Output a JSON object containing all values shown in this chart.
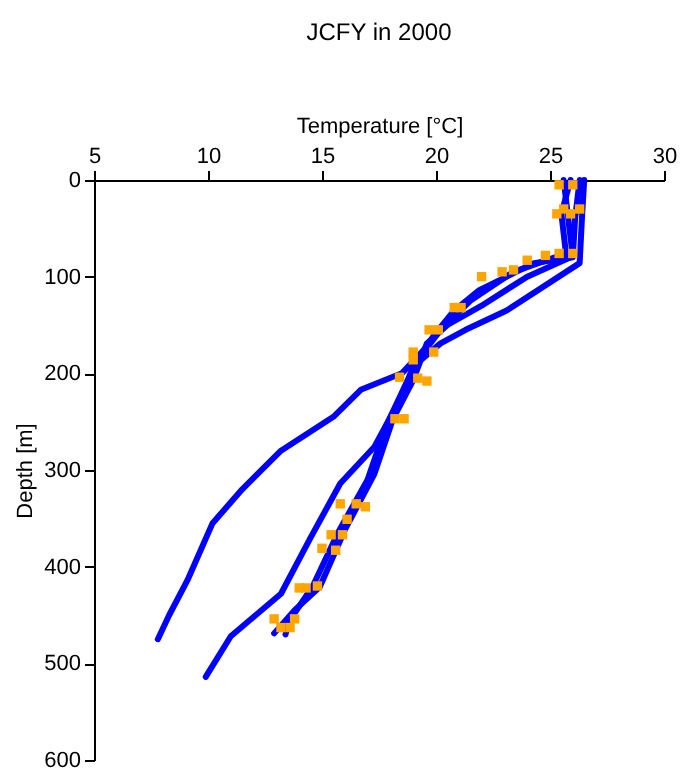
{
  "chart_data": {
    "type": "line",
    "title": "JCFY in 2000",
    "xlabel": "Temperature [°C]",
    "ylabel": "Depth [m]",
    "xlim": [
      5,
      30
    ],
    "ylim": [
      600,
      0
    ],
    "xticks": [
      5,
      10,
      15,
      20,
      25,
      30
    ],
    "yticks": [
      0,
      100,
      200,
      300,
      400,
      500,
      600
    ],
    "series": [
      {
        "color": "#0000ff",
        "marker": "none",
        "x": [
          26.3,
          26.1,
          26.0,
          24.3,
          21.9,
          20.8,
          19.9,
          19.5,
          18.5,
          16.7,
          15.5,
          13.2,
          11.5,
          10.2,
          9.1,
          8.3,
          7.8
        ],
        "values": [
          0,
          40,
          80,
          86,
          114,
          135,
          161,
          175,
          200,
          217,
          245,
          280,
          320,
          355,
          414,
          450,
          475
        ]
      },
      {
        "color": "#0000ff",
        "marker": "none",
        "x": [
          26.5,
          26.4,
          26.3,
          23.1,
          21.3,
          20.2,
          19.0,
          18.4,
          17.3,
          15.8,
          14.5,
          13.2,
          11.0,
          9.9
        ],
        "values": [
          0,
          40,
          86,
          135,
          155,
          169,
          193,
          228,
          276,
          314,
          370,
          428,
          472,
          514
        ]
      },
      {
        "color": "#0000ff",
        "marker": "none",
        "x": [
          25.6,
          25.8,
          26.0,
          24.0,
          22.0,
          20.5,
          19.6,
          19.0,
          18.1,
          17.3,
          16.0,
          14.9,
          13.8,
          12.9
        ],
        "values": [
          0,
          40,
          79,
          100,
          130,
          150,
          169,
          207,
          248,
          304,
          362,
          421,
          445,
          469
        ]
      },
      {
        "color": "#0000ff",
        "marker": "none",
        "x": [
          25.9,
          25.5,
          25.7,
          23.4,
          21.5,
          20.2,
          19.4,
          18.7,
          17.8,
          17.0,
          15.7,
          14.6,
          13.6,
          13.4
        ],
        "values": [
          0,
          35,
          76,
          95,
          125,
          155,
          180,
          210,
          255,
          310,
          365,
          420,
          455,
          470
        ]
      },
      {
        "type": "scatter",
        "color": "#ffa500",
        "marker": "square",
        "x": [
          25.4,
          26.0,
          25.6,
          25.3,
          26.3,
          25.9,
          25.4,
          26.0,
          24.8,
          24.0,
          23.4,
          22.9,
          22.0,
          21.1,
          20.8,
          20.1,
          19.7,
          19.0,
          19.9,
          19.0,
          18.4,
          19.2,
          19.6,
          18.2,
          18.6,
          15.8,
          16.5,
          16.9,
          16.1,
          15.9,
          15.4,
          15.0,
          15.6,
          14.0,
          14.3,
          14.8,
          12.9,
          13.8,
          13.2,
          13.6
        ],
        "values": [
          5,
          5,
          30,
          35,
          30,
          35,
          76,
          76,
          78,
          83,
          93,
          95,
          100,
          132,
          132,
          155,
          155,
          178,
          178,
          186,
          204,
          205,
          208,
          247,
          247,
          335,
          335,
          338,
          351,
          367,
          367,
          381,
          383,
          422,
          422,
          420,
          454,
          454,
          463,
          463
        ]
      }
    ]
  }
}
